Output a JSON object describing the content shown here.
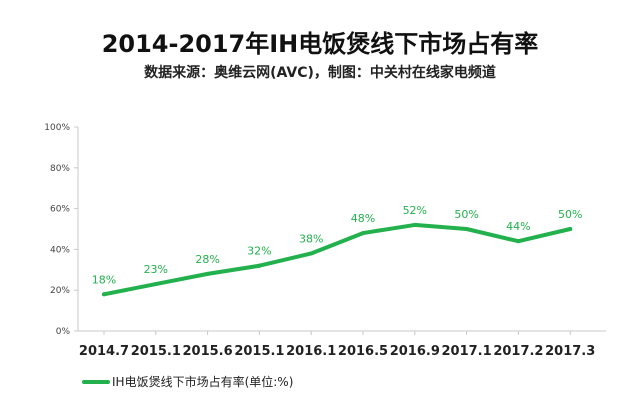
{
  "chart_data": {
    "type": "line",
    "title": "2014-2017年IH电饭煲线下市场占有率",
    "subtitle": "数据来源：奥维云网(AVC)，制图：中关村在线家电频道",
    "categories": [
      "2014.7",
      "2015.1",
      "2015.6",
      "2015.1",
      "2016.1",
      "2016.5",
      "2016.9",
      "2017.1",
      "2017.2",
      "2017.3"
    ],
    "series": [
      {
        "name": "IH电饭煲线下市场占有率(单位:%)",
        "values": [
          18,
          23,
          28,
          32,
          38,
          48,
          52,
          50,
          44,
          50
        ],
        "labels": [
          "18%",
          "23%",
          "28%",
          "32%",
          "38%",
          "48%",
          "52%",
          "50%",
          "44%",
          "50%"
        ]
      }
    ],
    "ylim": [
      0,
      100
    ],
    "yticks": [
      "0%",
      "20%",
      "40%",
      "60%",
      "80%",
      "100%"
    ],
    "grid": false,
    "legend": "bottom-left",
    "colors": {
      "line": "#22b14c",
      "axis": "#c8c8c8",
      "tick_text": "#444444",
      "category_text": "#222222"
    }
  }
}
